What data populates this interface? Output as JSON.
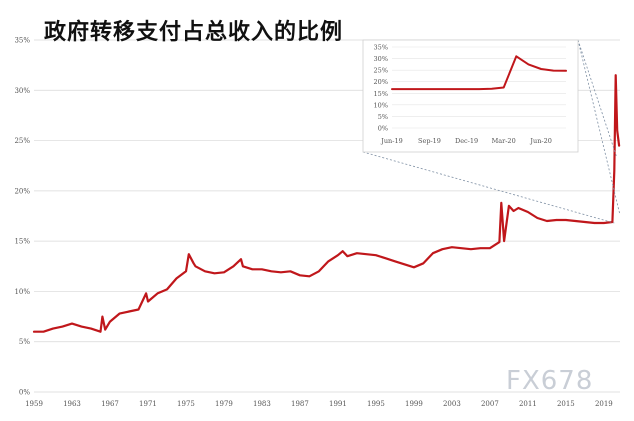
{
  "title": "政府转移支付占总收入的比例",
  "watermark": "FX678",
  "colors": {
    "line": "#c0171b",
    "grid": "#d8d8d8",
    "axis_text": "#555555",
    "inset_border": "#cfcfcf"
  },
  "chart_data": [
    {
      "type": "line",
      "title": "",
      "xlabel": "",
      "ylabel": "",
      "x_tick_labels": [
        "1959",
        "1963",
        "1967",
        "1971",
        "1975",
        "1979",
        "1983",
        "1987",
        "1991",
        "1995",
        "1999",
        "2003",
        "2007",
        "2011",
        "2015",
        "2019"
      ],
      "y_tick_labels": [
        "0%",
        "5%",
        "10%",
        "15%",
        "20%",
        "25%",
        "30%",
        "35%"
      ],
      "xlim": [
        1959,
        2020.7
      ],
      "ylim": [
        0,
        35
      ],
      "grid": true,
      "series": [
        {
          "x": [
            1959,
            1960,
            1961,
            1962,
            1963,
            1964,
            1965,
            1966,
            1966.2,
            1966.5,
            1967,
            1968,
            1969,
            1970,
            1970.8,
            1971,
            1972,
            1973,
            1974,
            1975,
            1975.3,
            1975.8,
            1976,
            1977,
            1978,
            1979,
            1980,
            1980.8,
            1981,
            1982,
            1983,
            1984,
            1985,
            1986,
            1987,
            1988,
            1989,
            1990,
            1991,
            1991.5,
            1992,
            1993,
            1994,
            1995,
            1996,
            1997,
            1998,
            1999,
            2000,
            2001,
            2002,
            2003,
            2004,
            2005,
            2006,
            2007,
            2008,
            2008.2,
            2008.5,
            2009,
            2009.5,
            2010,
            2011,
            2012,
            2013,
            2014,
            2015,
            2016,
            2017,
            2018,
            2019,
            2019.9,
            2020.1,
            2020.25,
            2020.4,
            2020.6
          ],
          "y": [
            6.0,
            6.0,
            6.3,
            6.5,
            6.8,
            6.5,
            6.3,
            6.0,
            7.5,
            6.2,
            7.0,
            7.8,
            8.0,
            8.2,
            9.8,
            9.0,
            9.8,
            10.2,
            11.3,
            12.0,
            13.7,
            12.8,
            12.5,
            12.0,
            11.8,
            11.9,
            12.5,
            13.2,
            12.5,
            12.2,
            12.2,
            12.0,
            11.9,
            12.0,
            11.6,
            11.5,
            12.0,
            13.0,
            13.6,
            14.0,
            13.5,
            13.8,
            13.7,
            13.6,
            13.3,
            13.0,
            12.7,
            12.4,
            12.8,
            13.8,
            14.2,
            14.4,
            14.3,
            14.2,
            14.3,
            14.3,
            14.9,
            18.8,
            15.0,
            18.5,
            18.0,
            18.3,
            17.9,
            17.3,
            17.0,
            17.1,
            17.1,
            17.0,
            16.9,
            16.8,
            16.8,
            16.9,
            22.0,
            31.5,
            26.0,
            24.5
          ]
        }
      ]
    },
    {
      "type": "line",
      "title": "",
      "xlabel": "",
      "ylabel": "",
      "x_tick_labels": [
        "Jun-19",
        "Sep-19",
        "Dec-19",
        "Mar-20",
        "Jun-20"
      ],
      "y_tick_labels": [
        "0%",
        "5%",
        "10%",
        "15%",
        "20%",
        "25%",
        "30%",
        "35%"
      ],
      "xlim": [
        "2019-06-01",
        "2020-08-01"
      ],
      "ylim": [
        0,
        35
      ],
      "grid": true,
      "series": [
        {
          "x": [
            "2019-06-01",
            "2019-07-01",
            "2019-08-01",
            "2019-09-01",
            "2019-10-01",
            "2019-11-01",
            "2019-12-01",
            "2020-01-01",
            "2020-02-01",
            "2020-03-01",
            "2020-04-01",
            "2020-05-01",
            "2020-06-01",
            "2020-07-01",
            "2020-08-01"
          ],
          "y": [
            16.8,
            16.8,
            16.8,
            16.8,
            16.8,
            16.8,
            16.8,
            16.8,
            17.0,
            17.5,
            31.0,
            27.5,
            25.5,
            24.8,
            24.7
          ]
        }
      ]
    }
  ]
}
